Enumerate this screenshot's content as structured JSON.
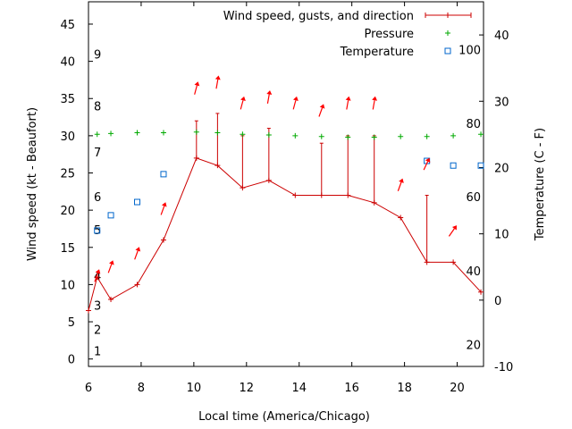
{
  "chart_data": {
    "type": "line",
    "xlabel": "Local time (America/Chicago)",
    "ylabel_left": "Wind speed (kt - Beaufort)",
    "ylabel_right": "Temperature (C - F)",
    "x_range": [
      6,
      21
    ],
    "y_left_range": [
      -1,
      48
    ],
    "y_right_range": [
      -10,
      45
    ],
    "x_ticks": [
      6,
      8,
      10,
      12,
      14,
      16,
      18,
      20
    ],
    "y_left_ticks": [
      0,
      5,
      10,
      15,
      20,
      25,
      30,
      35,
      40,
      45
    ],
    "y_right_ticks": [
      -10,
      0,
      10,
      20,
      30,
      40
    ],
    "beaufort_labels": [
      {
        "label": "1",
        "kt": 1.1
      },
      {
        "label": "2",
        "kt": 4
      },
      {
        "label": "3",
        "kt": 7.2
      },
      {
        "label": "4",
        "kt": 11.2
      },
      {
        "label": "5",
        "kt": 17.4
      },
      {
        "label": "6",
        "kt": 21.8
      },
      {
        "label": "7",
        "kt": 27.8
      },
      {
        "label": "8",
        "kt": 34
      },
      {
        "label": "9",
        "kt": 41
      }
    ],
    "fahrenheit_labels": [
      {
        "label": "20",
        "c": -6.7
      },
      {
        "label": "40",
        "c": 4.4
      },
      {
        "label": "60",
        "c": 15.6
      },
      {
        "label": "80",
        "c": 26.7
      },
      {
        "label": "100",
        "c": 37.8
      }
    ],
    "legend": {
      "position": "top-right",
      "entries": [
        "Wind speed, gusts, and direction",
        "Pressure",
        "Temperature"
      ]
    },
    "colors": {
      "wind": "#cc0000",
      "gust": "#cc0000",
      "arrow": "#ff0000",
      "pressure": "#00aa00",
      "temperature": "#0066cc"
    },
    "wind": [
      {
        "x": 6.0,
        "speed": 6.5,
        "gust": null
      },
      {
        "x": 6.33,
        "speed": 11,
        "gust": null
      },
      {
        "x": 6.85,
        "speed": 8,
        "gust": null
      },
      {
        "x": 7.85,
        "speed": 10,
        "gust": null
      },
      {
        "x": 8.85,
        "speed": 16,
        "gust": null
      },
      {
        "x": 10.1,
        "speed": 27,
        "gust": 32
      },
      {
        "x": 10.9,
        "speed": 26,
        "gust": 33
      },
      {
        "x": 11.85,
        "speed": 23,
        "gust": 30
      },
      {
        "x": 12.85,
        "speed": 24,
        "gust": 31
      },
      {
        "x": 13.85,
        "speed": 22,
        "gust": null
      },
      {
        "x": 14.85,
        "speed": 22,
        "gust": 29
      },
      {
        "x": 15.85,
        "speed": 22,
        "gust": 30
      },
      {
        "x": 16.85,
        "speed": 21,
        "gust": 30
      },
      {
        "x": 17.85,
        "speed": 19,
        "gust": null
      },
      {
        "x": 18.85,
        "speed": 13,
        "gust": 22
      },
      {
        "x": 19.85,
        "speed": 13,
        "gust": null
      },
      {
        "x": 20.9,
        "speed": 9,
        "gust": null
      }
    ],
    "direction_arrows": [
      {
        "x": 6.33,
        "y": 11.3,
        "dir_deg": 200
      },
      {
        "x": 6.85,
        "y": 12.5,
        "dir_deg": 200
      },
      {
        "x": 7.85,
        "y": 14.3,
        "dir_deg": 200
      },
      {
        "x": 8.85,
        "y": 20.3,
        "dir_deg": 200
      },
      {
        "x": 10.1,
        "y": 36.5,
        "dir_deg": 195
      },
      {
        "x": 10.9,
        "y": 37.3,
        "dir_deg": 190
      },
      {
        "x": 11.85,
        "y": 34.5,
        "dir_deg": 195
      },
      {
        "x": 12.85,
        "y": 35.3,
        "dir_deg": 190
      },
      {
        "x": 13.85,
        "y": 34.5,
        "dir_deg": 195
      },
      {
        "x": 14.85,
        "y": 33.5,
        "dir_deg": 200
      },
      {
        "x": 15.85,
        "y": 34.5,
        "dir_deg": 190
      },
      {
        "x": 16.85,
        "y": 34.5,
        "dir_deg": 190
      },
      {
        "x": 17.85,
        "y": 23.5,
        "dir_deg": 200
      },
      {
        "x": 18.85,
        "y": 26.3,
        "dir_deg": 205
      },
      {
        "x": 19.85,
        "y": 17.3,
        "dir_deg": 215
      }
    ],
    "pressure": [
      {
        "x": 6.33,
        "y": 30.2
      },
      {
        "x": 6.85,
        "y": 30.3
      },
      {
        "x": 7.85,
        "y": 30.4
      },
      {
        "x": 8.85,
        "y": 30.4
      },
      {
        "x": 10.1,
        "y": 30.5
      },
      {
        "x": 10.9,
        "y": 30.4
      },
      {
        "x": 11.85,
        "y": 30.2
      },
      {
        "x": 12.85,
        "y": 30.1
      },
      {
        "x": 13.85,
        "y": 30.0
      },
      {
        "x": 14.85,
        "y": 29.9
      },
      {
        "x": 15.85,
        "y": 29.8
      },
      {
        "x": 16.85,
        "y": 29.8
      },
      {
        "x": 17.85,
        "y": 29.9
      },
      {
        "x": 18.85,
        "y": 29.9
      },
      {
        "x": 19.85,
        "y": 30.0
      },
      {
        "x": 20.9,
        "y": 30.2
      }
    ],
    "temperature": [
      {
        "x": 6.33,
        "c": 10.5
      },
      {
        "x": 6.85,
        "c": 12.8
      },
      {
        "x": 7.85,
        "c": 14.8
      },
      {
        "x": 8.85,
        "c": 19.0
      },
      {
        "x": 18.85,
        "c": 21.0
      },
      {
        "x": 19.85,
        "c": 20.3
      },
      {
        "x": 20.9,
        "c": 20.3
      }
    ]
  }
}
